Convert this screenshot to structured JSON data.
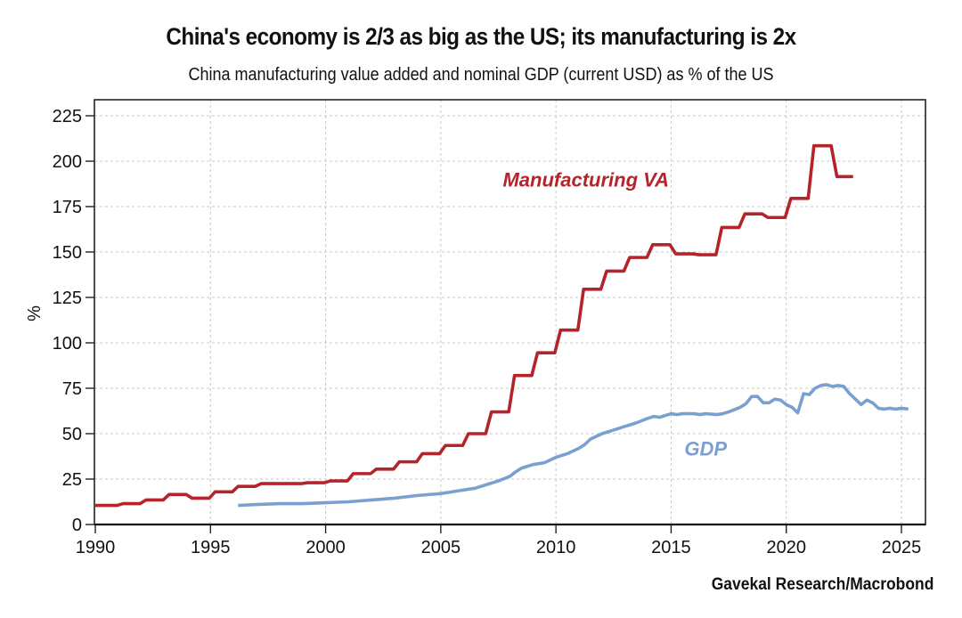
{
  "chart_data": {
    "type": "line",
    "title": "China's economy is 2/3 as big as the US; its manufacturing is 2x",
    "subtitle": "China manufacturing value added and nominal GDP (current USD) as % of the US",
    "xlabel": "",
    "ylabel": "%",
    "xlim": [
      1990,
      2026
    ],
    "ylim": [
      0,
      232
    ],
    "x_ticks": [
      1990,
      1995,
      2000,
      2005,
      2010,
      2015,
      2020,
      2025
    ],
    "y_ticks": [
      0,
      25,
      50,
      75,
      100,
      125,
      150,
      175,
      200,
      225
    ],
    "grid": true,
    "source": "Gavekal Research/Macrobond",
    "series": [
      {
        "name": "Manufacturing VA",
        "color": "#b5232b",
        "step": true,
        "x": [
          1990,
          1991,
          1992,
          1993,
          1994,
          1995,
          1996,
          1997,
          1998,
          1999,
          2000,
          2001,
          2002,
          2003,
          2004,
          2005,
          2006,
          2007,
          2008,
          2009,
          2010,
          2011,
          2012,
          2013,
          2014,
          2015,
          2016,
          2017,
          2018,
          2019,
          2020,
          2021,
          2022
        ],
        "values": [
          10.5,
          11.5,
          13.5,
          16.5,
          14.5,
          18,
          21,
          22.5,
          22.5,
          23,
          24,
          28,
          30.5,
          34.5,
          39,
          43.5,
          50,
          62,
          82,
          94.5,
          107,
          129.5,
          139.5,
          147,
          154,
          149,
          148.5,
          163.5,
          171,
          169,
          179.5,
          208.5,
          191.5
        ],
        "end_x": 2022.9
      },
      {
        "name": "GDP",
        "color": "#7aa0d0",
        "step": false,
        "x": [
          1996.2,
          1997,
          1998,
          1999,
          2000,
          2001,
          2002,
          2003,
          2004,
          2005,
          2005.5,
          2006,
          2006.5,
          2007,
          2007.5,
          2008,
          2008.25,
          2008.5,
          2009,
          2009.25,
          2009.5,
          2010,
          2010.5,
          2011,
          2011.25,
          2011.5,
          2012,
          2012.5,
          2013,
          2013.5,
          2014,
          2014.25,
          2014.5,
          2015,
          2015.25,
          2015.5,
          2016,
          2016.25,
          2016.5,
          2017,
          2017.25,
          2017.5,
          2018,
          2018.25,
          2018.5,
          2018.75,
          2019,
          2019.25,
          2019.5,
          2019.75,
          2020,
          2020.25,
          2020.5,
          2020.75,
          2021,
          2021.25,
          2021.5,
          2021.75,
          2022,
          2022.25,
          2022.5,
          2022.75,
          2023,
          2023.25,
          2023.5,
          2023.75,
          2024,
          2024.25,
          2024.5,
          2024.75,
          2025,
          2025.3
        ],
        "values": [
          10.5,
          11,
          11.5,
          11.5,
          12,
          12.5,
          13.5,
          14.5,
          16,
          17,
          18,
          19,
          20,
          22,
          24,
          26.5,
          29,
          31,
          33,
          33.5,
          34,
          37,
          39,
          42,
          44,
          47,
          50,
          52,
          54,
          56,
          58.5,
          59.5,
          59,
          61,
          60.5,
          61,
          61,
          60.5,
          61,
          60.5,
          61,
          62,
          64.5,
          66.5,
          70.5,
          70.5,
          67,
          67,
          69,
          68.5,
          66,
          64.5,
          61.5,
          72,
          71.5,
          75,
          76.5,
          77,
          76,
          76.5,
          76,
          72,
          69,
          66,
          68.5,
          67,
          64,
          63.5,
          64,
          63.5,
          64,
          63.5
        ]
      }
    ],
    "annotations": [
      {
        "text": "Manufacturing VA",
        "series": "Manufacturing VA",
        "x": 2011.3,
        "y": 186
      },
      {
        "text": "GDP",
        "series": "GDP",
        "x": 2016.5,
        "y": 38
      }
    ]
  }
}
